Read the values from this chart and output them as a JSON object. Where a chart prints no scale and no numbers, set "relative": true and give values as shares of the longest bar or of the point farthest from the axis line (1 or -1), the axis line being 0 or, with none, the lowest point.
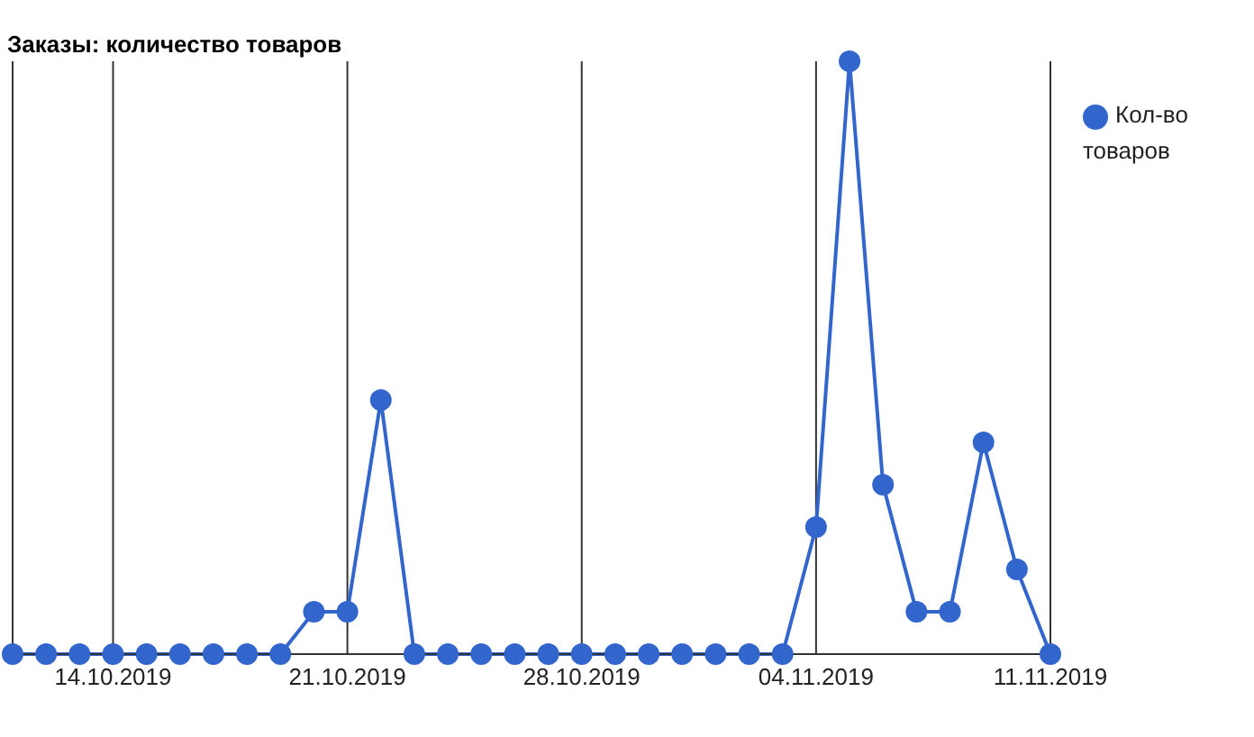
{
  "chart_data": {
    "type": "line",
    "title": "Заказы: количество товаров",
    "relative": true,
    "x": [
      "2019-10-11",
      "2019-10-12",
      "2019-10-13",
      "2019-10-14",
      "2019-10-15",
      "2019-10-16",
      "2019-10-17",
      "2019-10-18",
      "2019-10-19",
      "2019-10-20",
      "2019-10-21",
      "2019-10-22",
      "2019-10-23",
      "2019-10-24",
      "2019-10-25",
      "2019-10-26",
      "2019-10-27",
      "2019-10-28",
      "2019-10-29",
      "2019-10-30",
      "2019-10-31",
      "2019-11-01",
      "2019-11-02",
      "2019-11-03",
      "2019-11-04",
      "2019-11-05",
      "2019-11-06",
      "2019-11-07",
      "2019-11-08",
      "2019-11-09",
      "2019-11-10",
      "2019-11-11"
    ],
    "series": [
      {
        "name": "Кол-во товаров",
        "color": "#3366cc",
        "values": [
          0,
          0,
          0,
          0,
          0,
          0,
          0,
          0,
          0,
          0.0714,
          0.0714,
          0.4286,
          0,
          0,
          0,
          0,
          0,
          0,
          0,
          0,
          0,
          0,
          0,
          0,
          0.2143,
          1,
          0.2857,
          0.0714,
          0.0714,
          0.3571,
          0.1429,
          0
        ]
      }
    ],
    "xlim": [
      "2019-10-11",
      "2019-11-11"
    ],
    "xticks": [
      {
        "value": "2019-10-14",
        "label": "14.10.2019"
      },
      {
        "value": "2019-10-21",
        "label": "21.10.2019"
      },
      {
        "value": "2019-10-28",
        "label": "28.10.2019"
      },
      {
        "value": "2019-11-04",
        "label": "04.11.2019"
      },
      {
        "value": "2019-11-11",
        "label": "11.11.2019"
      }
    ],
    "grid": "x",
    "legend": "top right",
    "marker": "circle",
    "line_style": "solid"
  }
}
